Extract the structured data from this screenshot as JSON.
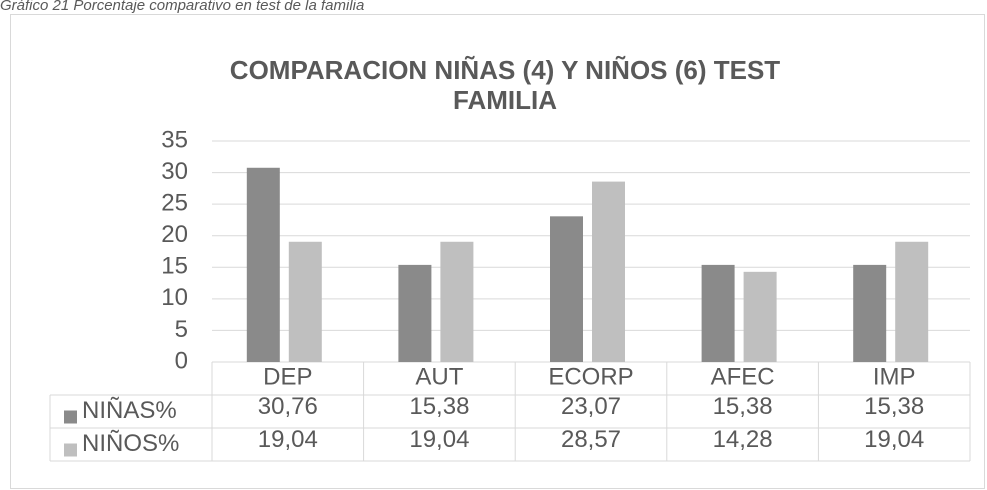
{
  "caption": "Gráfico 21 Porcentaje comparativo en test de la familia",
  "chart_data": {
    "type": "bar",
    "title": "COMPARACION NIÑAS (4) Y NIÑOS (6) TEST FAMILIA",
    "categories": [
      "DEP",
      "AUT",
      "ECORP",
      "AFEC",
      "IMP"
    ],
    "series": [
      {
        "name": "NIÑAS%",
        "color": "#8a8a8a",
        "values": [
          30.76,
          15.38,
          23.07,
          15.38,
          15.38
        ],
        "value_labels": [
          "30,76",
          "15,38",
          "23,07",
          "15,38",
          "15,38"
        ]
      },
      {
        "name": "NIÑOS%",
        "color": "#bfbfbf",
        "values": [
          19.04,
          19.04,
          28.57,
          14.28,
          19.04
        ],
        "value_labels": [
          "19,04",
          "19,04",
          "28,57",
          "14,28",
          "19,04"
        ]
      }
    ],
    "ylim": [
      0,
      35
    ],
    "yticks": [
      0,
      5,
      10,
      15,
      20,
      25,
      30,
      35
    ],
    "grid": true,
    "data_table": true
  }
}
